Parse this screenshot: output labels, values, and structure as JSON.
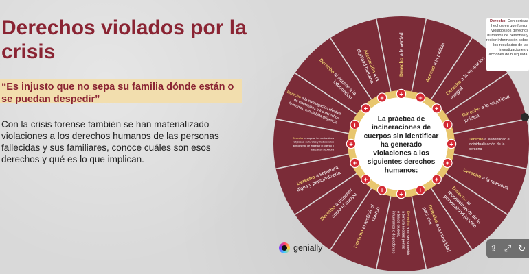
{
  "page": {
    "title": "Derechos violados por la crisis",
    "quote": "“Es injusto que no sepa su familia dónde están o se puedan despedir”",
    "body": "Con la crisis forense también se han materializado violaciones a los derechos humanos de las personas fallecidas y sus familiares, conoce cuáles son esos derechos y qué es lo que implican."
  },
  "wheel": {
    "center": [
      "La práctica de",
      "incineraciones de",
      "cuerpos sin identificar",
      "ha generado",
      "violaciones a los",
      "siguientes derechos",
      "humanos:"
    ],
    "sectors": [
      {
        "highlight": "Derecho",
        "text": [
          "a la verdad"
        ]
      },
      {
        "highlight": "Acceso",
        "text": [
          "a la justicia"
        ]
      },
      {
        "highlight": "Derecho",
        "text": [
          "a la reparación",
          "integral"
        ]
      },
      {
        "highlight": "Derecho",
        "text": [
          "a la seguridad",
          "jurídica"
        ]
      },
      {
        "highlight": "Derecho",
        "text": [
          "a la identidad e",
          "individualización de la",
          "persona"
        ]
      },
      {
        "highlight": "Derecho",
        "text": [
          "a la memoria"
        ]
      },
      {
        "highlight": "Derecho",
        "text": [
          "al",
          "reconocimiento de la",
          "personalidad jurídica"
        ]
      },
      {
        "highlight": "Derecho",
        "text": [
          "a la integridad",
          "personal"
        ]
      },
      {
        "highlight": "Derecho",
        "text": [
          "a no ser sometido",
          "a tortura ni otras penas",
          "o tratos crueles,",
          "inhumanos o degradantes"
        ]
      },
      {
        "highlight": "Derecho",
        "text": [
          "al restituir el",
          "cuerpo"
        ]
      },
      {
        "highlight": "Derecho",
        "text": [
          "a disponer",
          "sobre el cuerpo"
        ]
      },
      {
        "highlight": "Derecho",
        "text": [
          "a sepultura",
          "digna y personalizada"
        ]
      },
      {
        "highlight": "Derecho",
        "text": [
          "a respetar los costumbres",
          "religiosas, culturales y tradicionales",
          "al momento de entregar el cuerpo y",
          "realizar su sepultura"
        ]
      },
      {
        "highlight": "Derecho",
        "text": [
          "a la investigación efectiva",
          "de violaciones a los derechos",
          "humanos, con debida diligencia"
        ]
      },
      {
        "highlight": "Derecho",
        "text": [
          "al acceso a la",
          "información"
        ]
      },
      {
        "highlight": "Afectación",
        "text": [
          "a la",
          "dignidad humana"
        ]
      }
    ]
  },
  "callout": {
    "highlight": "Derecho:",
    "text": "Con certeza hechos en que fueron violados los derechos humanos de personas y recibir información sobre los resultados de las investigaciones y acciones de búsqueda."
  },
  "brand": {
    "name": "genially"
  },
  "toolbar": {
    "share_icon": "share-icon",
    "fullscreen_icon": "fullscreen-icon",
    "refresh_icon": "refresh-icon"
  },
  "colors": {
    "maroon": "#7b2c38",
    "gold": "#e8c66e",
    "accent": "#8a2433",
    "quote_bg": "#f2deae",
    "plus": "#d42a34"
  }
}
